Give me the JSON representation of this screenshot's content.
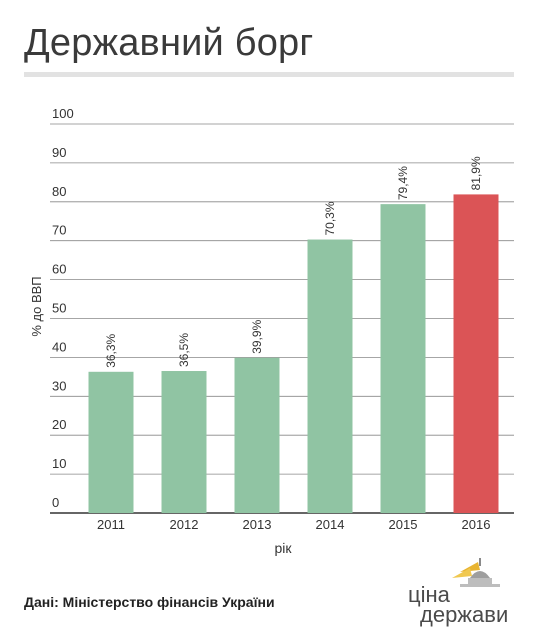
{
  "title": "Державний борг",
  "source": "Дані: Міністерство фінансів України",
  "logo": {
    "line1": "ціна",
    "line2": "держави",
    "colors": {
      "text": "#4a4a4a",
      "accent": "#e8b431"
    }
  },
  "colors": {
    "bar": "#90c4a3",
    "bar_highlight": "#db5456",
    "grid": "#888888",
    "axis_text": "#333333",
    "title": "#3a3a3a",
    "rule": "#e2e2e2"
  },
  "chart_data": {
    "type": "bar",
    "title": "",
    "xlabel": "рік",
    "ylabel": "% до ВВП",
    "categories": [
      "2011",
      "2012",
      "2013",
      "2014",
      "2015",
      "2016"
    ],
    "values": [
      36.3,
      36.5,
      39.9,
      70.3,
      79.4,
      81.9
    ],
    "value_labels": [
      "36,3%",
      "36,5%",
      "39,9%",
      "70,3%",
      "79,4%",
      "81,9%"
    ],
    "highlight_index": 5,
    "ylim": [
      0,
      100
    ],
    "yticks": [
      0,
      10,
      20,
      30,
      40,
      50,
      60,
      70,
      80,
      90,
      100
    ],
    "grid": true,
    "legend": "none"
  }
}
